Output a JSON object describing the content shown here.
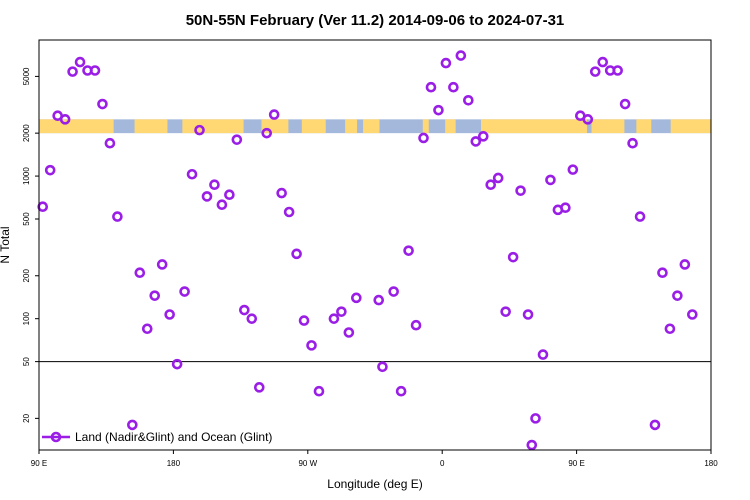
{
  "chart_data": {
    "type": "scatter",
    "title": "50N-55N February (Ver 11.2)   2014-09-06 to 2024-07-31",
    "xlabel": "Longitude (deg E)",
    "ylabel": "N Total",
    "x_ticks": [
      {
        "value": 90,
        "label": "90 E"
      },
      {
        "value": 180,
        "label": "180"
      },
      {
        "value": 270,
        "label": "90 W"
      },
      {
        "value": 360,
        "label": "0"
      },
      {
        "value": 450,
        "label": "90 E"
      },
      {
        "value": 540,
        "label": "180"
      }
    ],
    "y_ticks": [
      {
        "value": 20,
        "label": "20"
      },
      {
        "value": 50,
        "label": "50"
      },
      {
        "value": 100,
        "label": "100"
      },
      {
        "value": 200,
        "label": "200"
      },
      {
        "value": 500,
        "label": "500"
      },
      {
        "value": 1000,
        "label": "1000"
      },
      {
        "value": 2000,
        "label": "2000"
      },
      {
        "value": 5000,
        "label": "5000"
      }
    ],
    "xlim": [
      90,
      540
    ],
    "ylim": [
      12,
      9000
    ],
    "y_scale": "log",
    "reference_line_y": 50,
    "band_y_range": [
      2000,
      2500
    ],
    "band_land_color": "#ffd874",
    "band_ocean_color": "#a4b8dc",
    "land_segments": [
      [
        90,
        140
      ],
      [
        154,
        176
      ],
      [
        186,
        227
      ],
      [
        239,
        257
      ],
      [
        266,
        282
      ],
      [
        295,
        303
      ],
      [
        307,
        318
      ],
      [
        347,
        351
      ],
      [
        362,
        369
      ],
      [
        386,
        457
      ],
      [
        460,
        482
      ],
      [
        490,
        500
      ],
      [
        513,
        540
      ]
    ],
    "marker_color": "#9a1ee6",
    "legend_position": "bottom-left",
    "series": [
      {
        "name": "Land (Nadir&Glint) and Ocean (Glint)",
        "points": [
          [
            92.5,
            610
          ],
          [
            97.5,
            1100
          ],
          [
            102.5,
            2650
          ],
          [
            107.5,
            2500
          ],
          [
            112.5,
            5400
          ],
          [
            117.5,
            6300
          ],
          [
            122.5,
            5500
          ],
          [
            127.5,
            5500
          ],
          [
            132.5,
            3200
          ],
          [
            137.5,
            1700
          ],
          [
            142.5,
            520
          ],
          [
            152.5,
            18
          ],
          [
            157.5,
            210
          ],
          [
            162.5,
            85
          ],
          [
            167.5,
            145
          ],
          [
            172.5,
            240
          ],
          [
            177.5,
            107
          ],
          [
            182.5,
            48
          ],
          [
            187.5,
            155
          ],
          [
            192.5,
            1030
          ],
          [
            197.5,
            2100
          ],
          [
            202.5,
            720
          ],
          [
            207.5,
            870
          ],
          [
            212.5,
            630
          ],
          [
            217.5,
            740
          ],
          [
            222.5,
            1800
          ],
          [
            227.5,
            115
          ],
          [
            232.5,
            100
          ],
          [
            237.5,
            33
          ],
          [
            242.5,
            2000
          ],
          [
            247.5,
            2700
          ],
          [
            252.5,
            760
          ],
          [
            257.5,
            560
          ],
          [
            262.5,
            285
          ],
          [
            267.5,
            97
          ],
          [
            272.5,
            65
          ],
          [
            277.5,
            31
          ],
          [
            287.5,
            100
          ],
          [
            292.5,
            112
          ],
          [
            297.5,
            80
          ],
          [
            302.5,
            140
          ],
          [
            317.5,
            135
          ],
          [
            320,
            46
          ],
          [
            327.5,
            155
          ],
          [
            332.5,
            31
          ],
          [
            337.5,
            300
          ],
          [
            342.5,
            90
          ],
          [
            347.5,
            1850
          ],
          [
            352.5,
            4200
          ],
          [
            357.5,
            2900
          ],
          [
            362.5,
            6200
          ],
          [
            367.5,
            4200
          ],
          [
            372.5,
            7000
          ],
          [
            377.5,
            3400
          ],
          [
            382.5,
            1750
          ],
          [
            387.5,
            1900
          ],
          [
            392.5,
            870
          ],
          [
            397.5,
            970
          ],
          [
            402.5,
            112
          ],
          [
            407.5,
            270
          ],
          [
            412.5,
            790
          ],
          [
            417.5,
            107
          ],
          [
            420,
            13
          ],
          [
            422.5,
            20
          ],
          [
            427.5,
            56
          ],
          [
            432.5,
            940
          ],
          [
            437.5,
            580
          ],
          [
            442.5,
            600
          ],
          [
            447.5,
            1110
          ],
          [
            452.5,
            2650
          ],
          [
            457.5,
            2500
          ],
          [
            462.5,
            5400
          ],
          [
            467.5,
            6300
          ],
          [
            472.5,
            5500
          ],
          [
            477.5,
            5500
          ],
          [
            482.5,
            3200
          ],
          [
            487.5,
            1700
          ],
          [
            492.5,
            520
          ],
          [
            502.5,
            18
          ],
          [
            507.5,
            210
          ],
          [
            512.5,
            85
          ],
          [
            517.5,
            145
          ],
          [
            522.5,
            240
          ],
          [
            527.5,
            107
          ]
        ]
      }
    ]
  }
}
